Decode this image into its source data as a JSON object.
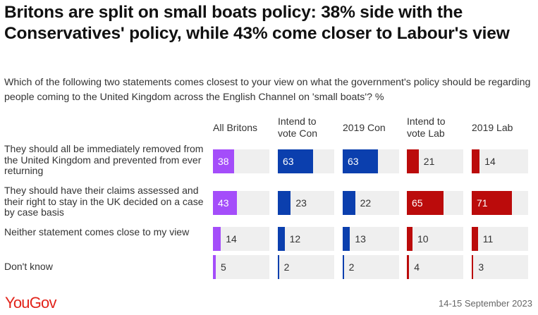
{
  "title": "Britons are split on small boats policy: 38% side with the Conservatives' policy, while 43% come closer to Labour's view",
  "subtitle": "Which of the following two statements comes closest to your view on what the government's policy should be regarding people coming to the United Kingdom across the English Channel on 'small boats'? %",
  "source": {
    "brand": "YouGov",
    "date": "14-15 September 2023"
  },
  "chart_data": {
    "type": "bar",
    "orientation": "horizontal",
    "title": "Britons are split on small boats policy: 38% side with the Conservatives' policy, while 43% come closer to Labour's view",
    "unit": "%",
    "xlim": [
      0,
      100
    ],
    "categories": [
      "They should all be immediately removed from the United Kingdom and prevented from ever returning",
      "They should have their claims assessed and their right to stay in the UK decided on a case by case basis",
      "Neither statement comes close to my view",
      "Don't know"
    ],
    "series": [
      {
        "name": "All Britons",
        "color": "#a44dfa",
        "values": [
          38,
          43,
          14,
          5
        ]
      },
      {
        "name": "Intend to vote Con",
        "color": "#0b3fae",
        "values": [
          63,
          23,
          12,
          2
        ]
      },
      {
        "name": "2019 Con",
        "color": "#0b3fae",
        "values": [
          63,
          22,
          13,
          2
        ]
      },
      {
        "name": "Intend to vote Lab",
        "color": "#bb0b0b",
        "values": [
          21,
          65,
          10,
          4
        ]
      },
      {
        "name": "2019 Lab",
        "color": "#bb0b0b",
        "values": [
          14,
          71,
          11,
          3
        ]
      }
    ]
  }
}
